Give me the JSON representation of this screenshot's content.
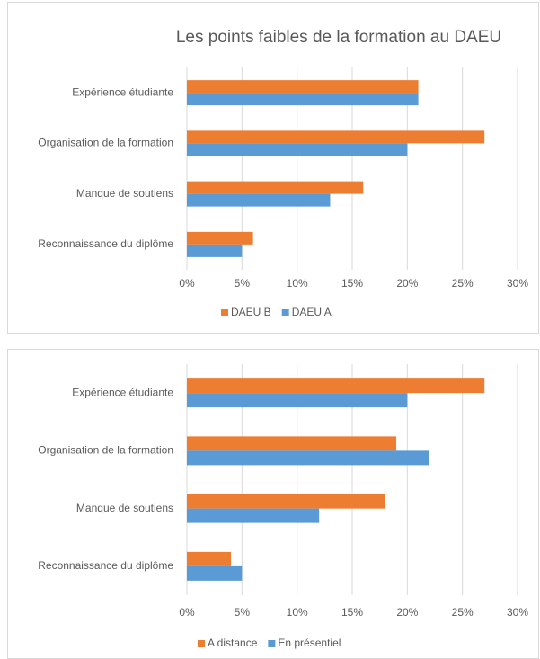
{
  "chart_data": [
    {
      "type": "bar",
      "orientation": "horizontal",
      "title": "Les points faibles de la formation au DAEU",
      "categories": [
        "Expérience étudiante",
        "Organisation de la formation",
        "Manque de soutiens",
        "Reconnaissance du diplôme"
      ],
      "series": [
        {
          "name": "DAEU B",
          "color": "#ed7d31",
          "values": [
            21,
            27,
            16,
            6
          ]
        },
        {
          "name": "DAEU A",
          "color": "#5b9bd5",
          "values": [
            21,
            20,
            13,
            5
          ]
        }
      ],
      "xlim": [
        0,
        30
      ],
      "xticks": [
        {
          "value": 0,
          "label": "0%"
        },
        {
          "value": 5,
          "label": "5%"
        },
        {
          "value": 10,
          "label": "10%"
        },
        {
          "value": 15,
          "label": "15%"
        },
        {
          "value": 20,
          "label": "20%"
        },
        {
          "value": 25,
          "label": "25%"
        },
        {
          "value": 30,
          "label": "30%"
        }
      ],
      "grid": true,
      "legend": "bottom"
    },
    {
      "type": "bar",
      "orientation": "horizontal",
      "categories": [
        "Expérience étudiante",
        "Organisation de la formation",
        "Manque de soutiens",
        "Reconnaissance du diplôme"
      ],
      "series": [
        {
          "name": "A distance",
          "color": "#ed7d31",
          "values": [
            27,
            19,
            18,
            4
          ]
        },
        {
          "name": "En présentiel",
          "color": "#5b9bd5",
          "values": [
            20,
            22,
            12,
            5
          ]
        }
      ],
      "xlim": [
        0,
        30
      ],
      "xticks": [
        {
          "value": 0,
          "label": "0%"
        },
        {
          "value": 5,
          "label": "5%"
        },
        {
          "value": 10,
          "label": "10%"
        },
        {
          "value": 15,
          "label": "15%"
        },
        {
          "value": 20,
          "label": "20%"
        },
        {
          "value": 25,
          "label": "25%"
        },
        {
          "value": 30,
          "label": "30%"
        }
      ],
      "grid": true,
      "legend": "bottom"
    }
  ]
}
